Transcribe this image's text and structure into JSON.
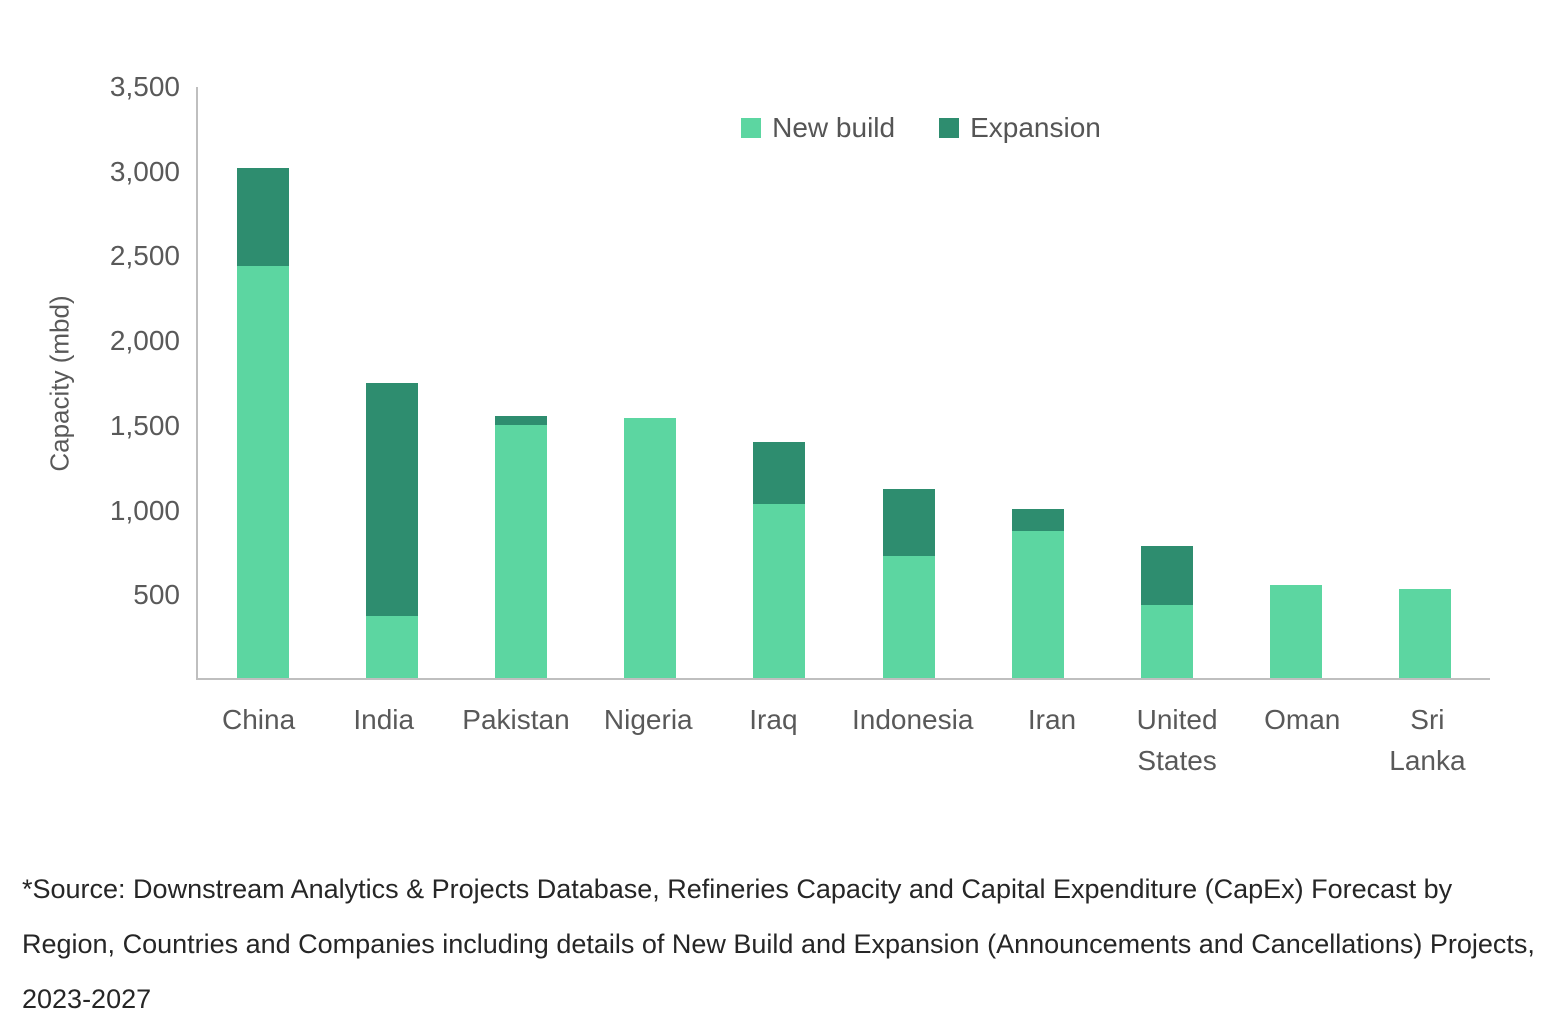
{
  "chart_data": {
    "type": "bar",
    "stacked": true,
    "title": "",
    "xlabel": "",
    "ylabel": "Capacity (mbd)",
    "ylim": [
      0,
      3500
    ],
    "ytick_interval": 500,
    "ytick_labels": [
      "3,500",
      "3,000",
      "2,500",
      "2,000",
      "1,500",
      "1,000",
      "500"
    ],
    "grid": false,
    "legend_position": "top-center",
    "categories": [
      "China",
      "India",
      "Pakistan",
      "Nigeria",
      "Iraq",
      "Indonesia",
      "Iran",
      "United States",
      "Oman",
      "Sri Lanka"
    ],
    "series": [
      {
        "name": "New build",
        "color": "#5cd6a1",
        "values": [
          2440,
          370,
          1500,
          1540,
          1030,
          720,
          870,
          430,
          550,
          530
        ]
      },
      {
        "name": "Expansion",
        "color": "#2e8d6f",
        "values": [
          580,
          1380,
          50,
          0,
          370,
          400,
          130,
          350,
          0,
          0
        ]
      }
    ]
  },
  "source_note": "*Source: Downstream Analytics & Projects Database, Refineries Capacity and Capital Expenditure (CapEx) Forecast by Region, Countries and Companies including details of New Build and Expansion (Announcements and Cancellations) Projects, 2023-2027"
}
